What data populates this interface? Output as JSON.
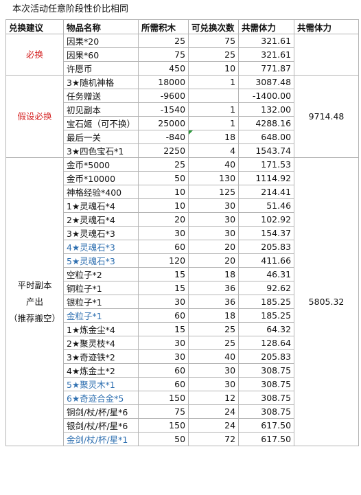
{
  "title": "本次活动任意阶段性价比相同",
  "headers": [
    "兑换建议",
    "物品名称",
    "所需积木",
    "可兑换次数",
    "共需体力",
    "共需体力"
  ],
  "groups": [
    {
      "label": "必换",
      "total": "",
      "rows": [
        {
          "name": "因果*20",
          "cost": "25",
          "times": "75",
          "stamina": "321.61"
        },
        {
          "name": "因果*60",
          "cost": "75",
          "times": "25",
          "stamina": "321.61"
        },
        {
          "name": "许愿币",
          "cost": "450",
          "times": "10",
          "stamina": "771.87"
        }
      ]
    },
    {
      "label": "假设必换",
      "total": "9714.48",
      "rows": [
        {
          "name": "3★随机神格",
          "cost": "18000",
          "times": "1",
          "stamina": "3087.48"
        },
        {
          "name": "任务赠送",
          "cost": "-9600",
          "times": "",
          "stamina": "-1400.00"
        },
        {
          "name": "初见副本",
          "cost": "-1540",
          "times": "1",
          "stamina": "132.00"
        },
        {
          "name": "宝石姬（可不换）",
          "cost": "25000",
          "times": "1",
          "stamina": "4288.16"
        },
        {
          "name": "最后一关",
          "cost": "-840",
          "times": "18",
          "stamina": "648.00"
        },
        {
          "name": "3★四色宝石*1",
          "cost": "2250",
          "times": "4",
          "stamina": "1543.74"
        }
      ]
    },
    {
      "label": "平时副本产出（推荐搬空）",
      "label_lines": [
        "平时副本",
        "产出",
        "（推荐搬空）"
      ],
      "total": "5805.32",
      "rows": [
        {
          "name": "金币*5000",
          "cost": "25",
          "times": "40",
          "stamina": "171.53"
        },
        {
          "name": "金币*10000",
          "cost": "50",
          "times": "130",
          "stamina": "1114.92"
        },
        {
          "name": "神格经验*400",
          "cost": "10",
          "times": "125",
          "stamina": "214.41"
        },
        {
          "name": "1★灵魂石*4",
          "cost": "10",
          "times": "30",
          "stamina": "51.46"
        },
        {
          "name": "2★灵魂石*4",
          "cost": "20",
          "times": "30",
          "stamina": "102.92"
        },
        {
          "name": "3★灵魂石*3",
          "cost": "30",
          "times": "30",
          "stamina": "154.37"
        },
        {
          "name": "4★灵魂石*3",
          "cost": "60",
          "times": "20",
          "stamina": "205.83",
          "blue": true
        },
        {
          "name": "5★灵魂石*3",
          "cost": "120",
          "times": "20",
          "stamina": "411.66",
          "blue": true
        },
        {
          "name": "空粒子*2",
          "cost": "15",
          "times": "18",
          "stamina": "46.31"
        },
        {
          "name": "铜粒子*1",
          "cost": "15",
          "times": "36",
          "stamina": "92.62"
        },
        {
          "name": "银粒子*1",
          "cost": "30",
          "times": "36",
          "stamina": "185.25"
        },
        {
          "name": "金粒子*1",
          "cost": "60",
          "times": "18",
          "stamina": "185.25",
          "blue": true
        },
        {
          "name": "1★炼金尘*4",
          "cost": "15",
          "times": "25",
          "stamina": "64.32"
        },
        {
          "name": "2★聚灵枝*4",
          "cost": "30",
          "times": "25",
          "stamina": "128.64"
        },
        {
          "name": "3★奇迹铁*2",
          "cost": "30",
          "times": "40",
          "stamina": "205.83"
        },
        {
          "name": "4★炼金土*2",
          "cost": "60",
          "times": "30",
          "stamina": "308.75"
        },
        {
          "name": "5★聚灵木*1",
          "cost": "60",
          "times": "30",
          "stamina": "308.75",
          "blue": true
        },
        {
          "name": "6★奇迹合金*5",
          "cost": "150",
          "times": "12",
          "stamina": "308.75",
          "blue": true
        },
        {
          "name": "铜剑/杖/杯/星*6",
          "cost": "75",
          "times": "24",
          "stamina": "308.75"
        },
        {
          "name": "银剑/杖/杯/星*6",
          "cost": "150",
          "times": "24",
          "stamina": "617.50"
        },
        {
          "name": "金剑/杖/杯/星*1",
          "cost": "50",
          "times": "72",
          "stamina": "617.50",
          "blue": true
        }
      ]
    }
  ],
  "colors": {
    "group_label": "#d41f1f",
    "highlight_text": "#2e6fb0",
    "grid_line": "#b4b4b4",
    "note_marker": "#2a9a3a"
  }
}
